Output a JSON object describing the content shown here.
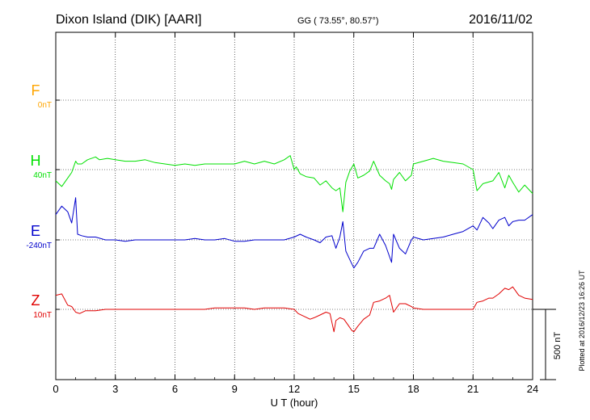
{
  "header": {
    "station": "Dixon Island (DIK)  [AARI]",
    "coords": "GG ( 73.55°,  80.57°)",
    "date": "2016/11/02"
  },
  "footer": {
    "xlabel": "U T (hour)",
    "plotted": "Plotted at 2016/12/23 16:26 UT"
  },
  "scale": {
    "label": "500 nT",
    "value_nT": 500
  },
  "colors": {
    "F": "#ffa500",
    "H": "#00e000",
    "E": "#0000cc",
    "Z": "#e00000",
    "grid": "#000000"
  },
  "chart_data": {
    "type": "line",
    "xlabel": "U T (hour)",
    "xlim": [
      0,
      24
    ],
    "x_ticks": [
      "0",
      "3",
      "6",
      "9",
      "12",
      "15",
      "18",
      "21",
      "24"
    ],
    "grid": true,
    "series": [
      {
        "name": "F",
        "baseline_label": "0nT",
        "color": "#ffa500",
        "x": [],
        "values": []
      },
      {
        "name": "H",
        "baseline_label": "40nT",
        "color": "#00e000",
        "x": [
          0,
          0.3,
          0.6,
          0.8,
          1.0,
          1.1,
          1.3,
          1.6,
          2.0,
          2.2,
          2.6,
          3.0,
          3.5,
          4.0,
          4.5,
          5.0,
          5.5,
          6.0,
          6.5,
          7.0,
          7.5,
          8.0,
          8.5,
          9.0,
          9.5,
          10.0,
          10.5,
          11.0,
          11.5,
          11.8,
          12.0,
          12.1,
          12.3,
          12.6,
          13.0,
          13.3,
          13.6,
          13.9,
          14.1,
          14.3,
          14.45,
          14.6,
          14.8,
          15.0,
          15.2,
          15.5,
          15.8,
          16.0,
          16.3,
          16.6,
          16.8,
          16.9,
          17.0,
          17.3,
          17.6,
          17.9,
          18.0,
          18.5,
          19.0,
          19.5,
          20.0,
          20.5,
          21.0,
          21.2,
          21.5,
          22.0,
          22.3,
          22.6,
          22.8,
          23.0,
          23.3,
          23.6,
          24.0
        ],
        "values": [
          -80,
          -120,
          -60,
          -20,
          60,
          40,
          40,
          70,
          90,
          70,
          80,
          70,
          60,
          60,
          70,
          50,
          40,
          30,
          40,
          30,
          40,
          40,
          40,
          40,
          60,
          40,
          60,
          40,
          70,
          100,
          0,
          20,
          -30,
          -50,
          -60,
          -110,
          -80,
          -130,
          -150,
          -130,
          -300,
          -90,
          -10,
          40,
          -60,
          -40,
          -10,
          60,
          -40,
          -80,
          -100,
          -140,
          -70,
          -20,
          -80,
          -40,
          40,
          60,
          80,
          60,
          50,
          40,
          0,
          -150,
          -100,
          -80,
          -20,
          -130,
          -40,
          -90,
          -160,
          -110,
          -170
        ]
      },
      {
        "name": "E",
        "baseline_label": "-240nT",
        "color": "#0000cc",
        "x": [
          0,
          0.3,
          0.6,
          0.8,
          1.0,
          1.1,
          1.3,
          1.6,
          2.0,
          2.5,
          3.0,
          3.5,
          4.0,
          4.5,
          5.0,
          5.5,
          6.0,
          6.5,
          7.0,
          7.5,
          8.0,
          8.5,
          9.0,
          9.5,
          10.0,
          10.5,
          11.0,
          11.5,
          12.0,
          12.3,
          12.6,
          13.0,
          13.3,
          13.6,
          13.9,
          14.1,
          14.3,
          14.45,
          14.6,
          14.8,
          15.0,
          15.2,
          15.5,
          15.8,
          16.0,
          16.3,
          16.6,
          16.9,
          17.0,
          17.3,
          17.6,
          17.9,
          18.0,
          18.5,
          19.0,
          19.5,
          20.0,
          20.5,
          21.0,
          21.2,
          21.5,
          21.8,
          22.0,
          22.3,
          22.6,
          22.8,
          23.0,
          23.3,
          23.6,
          24.0
        ],
        "values": [
          180,
          240,
          200,
          120,
          300,
          40,
          30,
          20,
          20,
          0,
          0,
          -10,
          0,
          0,
          0,
          0,
          0,
          0,
          10,
          0,
          0,
          10,
          -10,
          -10,
          0,
          0,
          0,
          0,
          20,
          40,
          20,
          0,
          -20,
          20,
          30,
          -60,
          20,
          130,
          -80,
          -140,
          -200,
          -160,
          -80,
          -60,
          -60,
          40,
          -40,
          -160,
          40,
          -60,
          -100,
          0,
          20,
          0,
          10,
          20,
          40,
          60,
          100,
          70,
          160,
          120,
          80,
          140,
          160,
          100,
          130,
          140,
          140,
          180
        ]
      },
      {
        "name": "Z",
        "baseline_label": "10nT",
        "color": "#e00000",
        "x": [
          0,
          0.3,
          0.6,
          0.8,
          1.0,
          1.2,
          1.5,
          2.0,
          2.5,
          3.0,
          3.5,
          4.0,
          4.5,
          5.0,
          5.5,
          6.0,
          6.5,
          7.0,
          7.5,
          8.0,
          8.5,
          9.0,
          9.5,
          10.0,
          10.5,
          11.0,
          11.5,
          12.0,
          12.2,
          12.5,
          12.8,
          13.0,
          13.3,
          13.6,
          13.8,
          14.0,
          14.1,
          14.3,
          14.5,
          14.7,
          14.9,
          15.0,
          15.2,
          15.5,
          15.8,
          16.0,
          16.3,
          16.6,
          16.8,
          17.0,
          17.3,
          17.6,
          17.9,
          18.0,
          18.5,
          19.0,
          19.5,
          20.0,
          20.5,
          21.0,
          21.2,
          21.5,
          21.8,
          22.0,
          22.3,
          22.6,
          22.8,
          23.0,
          23.3,
          23.6,
          24.0
        ],
        "values": [
          100,
          110,
          30,
          20,
          -20,
          -30,
          -10,
          -10,
          0,
          0,
          0,
          0,
          0,
          0,
          0,
          0,
          0,
          0,
          0,
          10,
          10,
          10,
          10,
          0,
          10,
          10,
          10,
          0,
          -30,
          -50,
          -70,
          -60,
          -40,
          -20,
          -30,
          -160,
          -80,
          -60,
          -70,
          -110,
          -150,
          -160,
          -120,
          -70,
          -40,
          50,
          60,
          80,
          100,
          -20,
          40,
          40,
          20,
          10,
          0,
          0,
          0,
          0,
          0,
          0,
          50,
          60,
          80,
          80,
          110,
          150,
          140,
          160,
          100,
          80,
          70
        ]
      }
    ]
  }
}
